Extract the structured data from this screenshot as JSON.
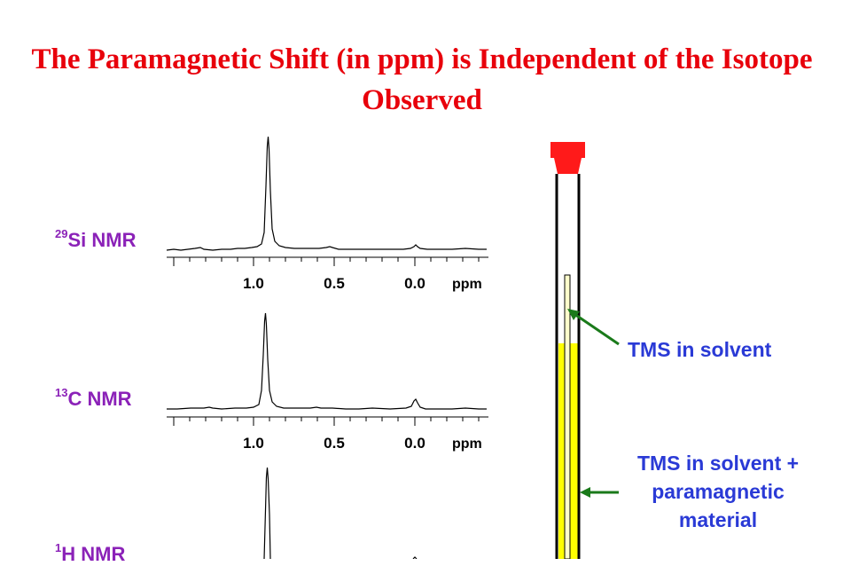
{
  "title": "The Paramagnetic Shift (in ppm) is Independent of the Isotope Observed",
  "spectra": [
    {
      "mass": "29",
      "element": "Si",
      "suffix": " NMR"
    },
    {
      "mass": "13",
      "element": "C",
      "suffix": " NMR"
    },
    {
      "mass": "1",
      "element": "H",
      "suffix": " NMR"
    }
  ],
  "axis": {
    "ticks": [
      "1.0",
      "0.5",
      "0.0"
    ],
    "unit": "ppm"
  },
  "annotations": {
    "tms_solvent": "TMS in solvent",
    "tms_paramagnetic_line1": "TMS in solvent +",
    "tms_paramagnetic_line2": "paramagnetic",
    "tms_paramagnetic_line3": "material"
  },
  "colors": {
    "title": "#e8000b",
    "labels": "#8b22b8",
    "annotations": "#2a3ad6",
    "arrows": "#1a7a1a",
    "solution": "#ffff00",
    "cap": "#ff1a1a"
  }
}
